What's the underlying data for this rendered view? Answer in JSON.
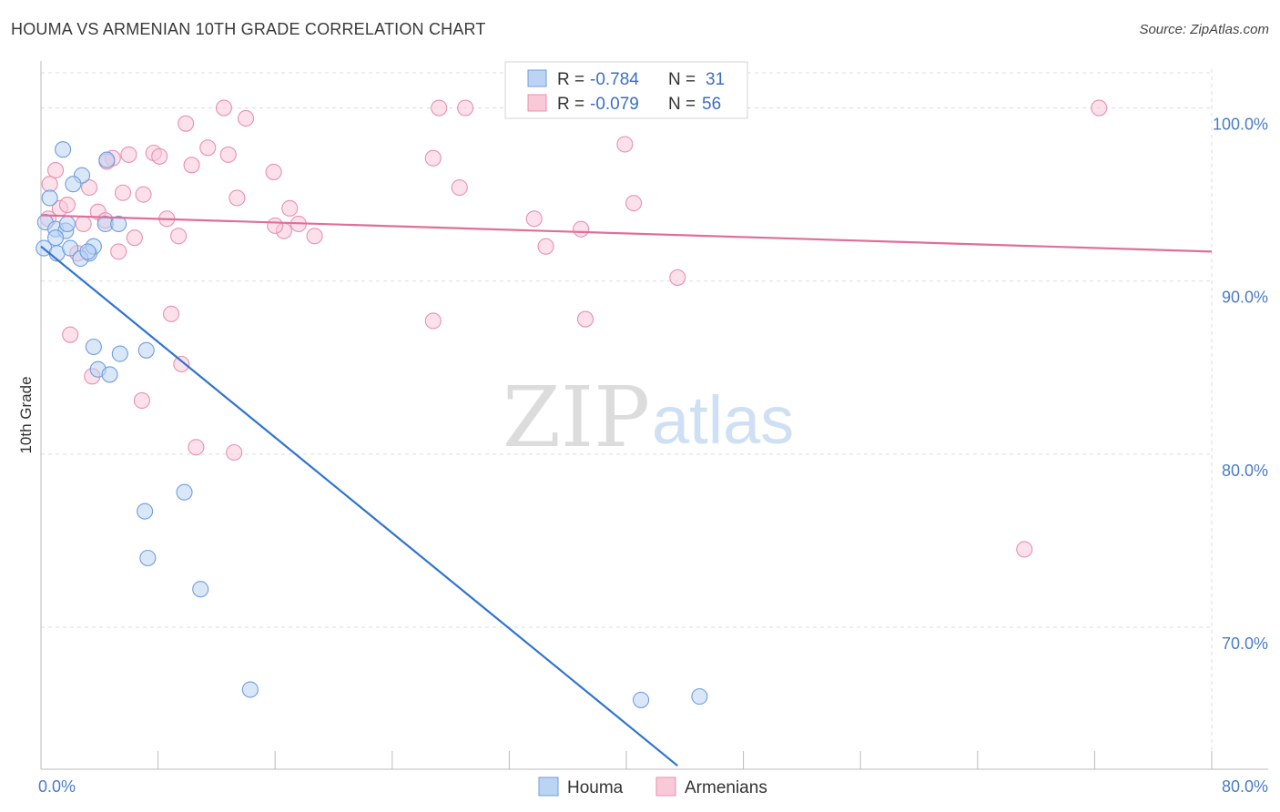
{
  "header": {
    "title": "HOUMA VS ARMENIAN 10TH GRADE CORRELATION CHART",
    "source": "Source: ZipAtlas.com"
  },
  "watermark": {
    "zip": "ZIP",
    "atlas": "atlas"
  },
  "legend": {
    "rows": [
      {
        "r_label": "R =",
        "r_value": "-0.784",
        "n_label": "N =",
        "n_value": "31",
        "color": "#8fb6ea"
      },
      {
        "r_label": "R =",
        "r_value": "-0.079",
        "n_label": "N =",
        "n_value": "56",
        "color": "#f2a8c0"
      }
    ]
  },
  "bottom_legend": [
    "Houma",
    "Armenians"
  ],
  "colors": {
    "houma_fill": "#bcd4f4",
    "houma_stroke": "#6f9fdd",
    "houma_line": "#2f74d0",
    "armenian_fill": "#f9c9d8",
    "armenian_stroke": "#e891ae",
    "armenian_line": "#e06e98",
    "grid": "#dddddd",
    "tick_text": "#4a7cc9"
  },
  "chart_data": {
    "type": "scatter",
    "title": "HOUMA VS ARMENIAN 10TH GRADE CORRELATION CHART",
    "xlabel": "",
    "ylabel": "10th Grade",
    "xlim": [
      0,
      80
    ],
    "ylim": [
      61.8,
      103.5
    ],
    "x_tick_labels": [
      {
        "value": 0,
        "label": "0.0%"
      },
      {
        "value": 80,
        "label": "80.0%"
      }
    ],
    "y_tick_labels": [
      {
        "value": 100,
        "label": "100.0%"
      },
      {
        "value": 90,
        "label": "90.0%"
      },
      {
        "value": 80,
        "label": "80.0%"
      },
      {
        "value": 70,
        "label": "70.0%"
      }
    ],
    "grid": true,
    "legend_position": "top-center",
    "series": [
      {
        "name": "Houma",
        "r": -0.784,
        "n": 31,
        "trend": [
          [
            0,
            92.0
          ],
          [
            43.5,
            62.0
          ]
        ],
        "points": [
          [
            1.5,
            97.6
          ],
          [
            2.8,
            96.1
          ],
          [
            2.2,
            95.6
          ],
          [
            4.5,
            97.0
          ],
          [
            0.6,
            94.8
          ],
          [
            0.3,
            93.4
          ],
          [
            1.0,
            93.0
          ],
          [
            1.7,
            92.9
          ],
          [
            1.0,
            92.5
          ],
          [
            1.8,
            93.3
          ],
          [
            4.4,
            93.3
          ],
          [
            5.3,
            93.3
          ],
          [
            0.2,
            91.9
          ],
          [
            1.1,
            91.6
          ],
          [
            2.0,
            91.9
          ],
          [
            3.3,
            91.6
          ],
          [
            3.6,
            92.0
          ],
          [
            2.7,
            91.3
          ],
          [
            3.2,
            91.7
          ],
          [
            3.6,
            86.2
          ],
          [
            7.2,
            86.0
          ],
          [
            5.4,
            85.8
          ],
          [
            3.9,
            84.9
          ],
          [
            4.7,
            84.6
          ],
          [
            9.8,
            77.8
          ],
          [
            7.1,
            76.7
          ],
          [
            7.3,
            74.0
          ],
          [
            10.9,
            72.2
          ],
          [
            14.3,
            66.4
          ],
          [
            41.0,
            65.8
          ],
          [
            45.0,
            66.0
          ]
        ]
      },
      {
        "name": "Armenians",
        "r": -0.079,
        "n": 56,
        "trend": [
          [
            0,
            93.8
          ],
          [
            80,
            91.7
          ]
        ],
        "points": [
          [
            12.5,
            100.0
          ],
          [
            27.2,
            100.0
          ],
          [
            29.0,
            100.0
          ],
          [
            32.8,
            100.0
          ],
          [
            72.3,
            100.0
          ],
          [
            9.9,
            99.1
          ],
          [
            14.0,
            99.4
          ],
          [
            11.4,
            97.7
          ],
          [
            6.0,
            97.3
          ],
          [
            7.7,
            97.4
          ],
          [
            8.1,
            97.2
          ],
          [
            4.9,
            97.1
          ],
          [
            12.8,
            97.3
          ],
          [
            26.8,
            97.1
          ],
          [
            1.0,
            96.4
          ],
          [
            10.3,
            96.7
          ],
          [
            15.9,
            96.3
          ],
          [
            4.5,
            96.9
          ],
          [
            0.6,
            95.6
          ],
          [
            3.3,
            95.4
          ],
          [
            5.6,
            95.1
          ],
          [
            7.0,
            95.0
          ],
          [
            13.4,
            94.8
          ],
          [
            28.6,
            95.4
          ],
          [
            40.5,
            94.5
          ],
          [
            1.3,
            94.2
          ],
          [
            1.8,
            94.4
          ],
          [
            3.9,
            94.0
          ],
          [
            17.0,
            94.2
          ],
          [
            0.5,
            93.6
          ],
          [
            2.9,
            93.3
          ],
          [
            4.4,
            93.5
          ],
          [
            8.6,
            93.6
          ],
          [
            17.6,
            93.3
          ],
          [
            33.7,
            93.6
          ],
          [
            16.6,
            92.9
          ],
          [
            16.0,
            93.2
          ],
          [
            36.9,
            93.0
          ],
          [
            6.4,
            92.5
          ],
          [
            9.4,
            92.6
          ],
          [
            18.7,
            92.6
          ],
          [
            5.3,
            91.7
          ],
          [
            34.5,
            92.0
          ],
          [
            43.5,
            90.2
          ],
          [
            2.5,
            91.6
          ],
          [
            8.9,
            88.1
          ],
          [
            26.8,
            87.7
          ],
          [
            37.2,
            87.8
          ],
          [
            2.0,
            86.9
          ],
          [
            9.6,
            85.2
          ],
          [
            3.5,
            84.5
          ],
          [
            6.9,
            83.1
          ],
          [
            10.6,
            80.4
          ],
          [
            13.2,
            80.1
          ],
          [
            67.2,
            74.5
          ],
          [
            39.9,
            97.9
          ]
        ]
      }
    ]
  }
}
